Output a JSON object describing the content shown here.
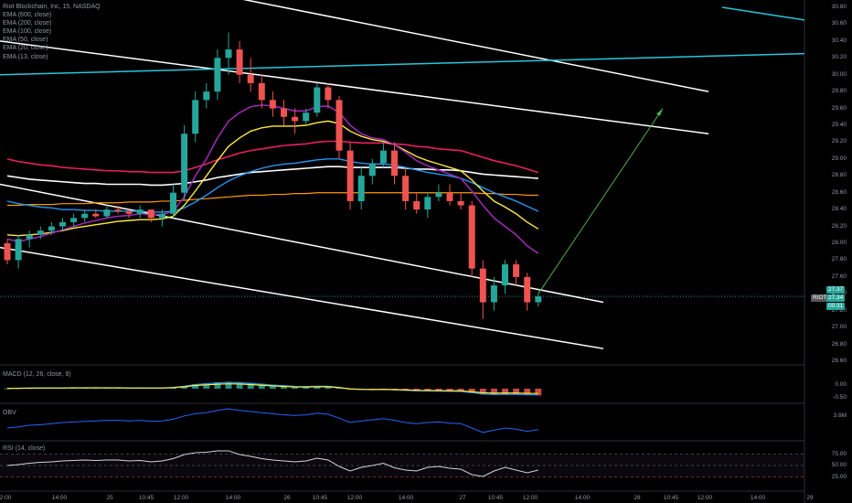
{
  "symbol_line": "Riot Blockchain, Inc, 15, NASDAQ",
  "indicators": [
    "EMA (600, close)",
    "EMA (200, close)",
    "EMA (100, close)",
    "EMA (50, close)",
    "EMA (20, close)",
    "EMA (13, close)"
  ],
  "panes": {
    "macd": "MACD (12, 26, close, 9)",
    "obv": "OBV",
    "rsi": "RSI (14, close)"
  },
  "price_axis": [
    "30.80",
    "30.60",
    "30.40",
    "30.20",
    "30.00",
    "29.80",
    "29.60",
    "29.40",
    "29.20",
    "29.00",
    "28.80",
    "28.60",
    "28.40",
    "28.20",
    "28.00",
    "27.80",
    "27.60",
    "27.40",
    "27.20",
    "27.00",
    "26.80",
    "26.60"
  ],
  "macd_axis": [
    "0.00",
    "-0.50"
  ],
  "obv_axis": [
    "3.8M"
  ],
  "rsi_axis": [
    "75.00",
    "50.00",
    "25.00"
  ],
  "time_axis": [
    "2:00",
    "14:00",
    "25",
    "10:45",
    "12:00",
    "14:00",
    "26",
    "10:45",
    "12:00",
    "14:00",
    "27",
    "10:45",
    "12:00",
    "14:00",
    "28",
    "10:45",
    "12:00",
    "14:00",
    "29"
  ],
  "price_badges": {
    "ticker": "RIOT",
    "last": "27.37",
    "current": "27.34",
    "countdown": "00:31"
  },
  "colors": {
    "up": "#26a69a",
    "down": "#ef5350",
    "ema600": "#26c6da",
    "ema200": "#ffffff",
    "ema100": "#e91e63",
    "ema50": "#2196f3",
    "ema20": "#ffeb3b",
    "ema13": "#9c27b0",
    "ema_long": "#ff9800",
    "arrow": "#4caf50"
  },
  "chart_data": {
    "type": "candlestick",
    "ylim": [
      26.6,
      30.8
    ],
    "candles": [
      [
        28.0,
        28.05,
        27.75,
        27.8
      ],
      [
        27.8,
        28.1,
        27.7,
        28.05
      ],
      [
        28.05,
        28.15,
        27.95,
        28.1
      ],
      [
        28.1,
        28.2,
        28.05,
        28.15
      ],
      [
        28.15,
        28.25,
        28.1,
        28.2
      ],
      [
        28.2,
        28.3,
        28.15,
        28.25
      ],
      [
        28.25,
        28.35,
        28.2,
        28.3
      ],
      [
        28.3,
        28.4,
        28.25,
        28.35
      ],
      [
        28.35,
        28.4,
        28.3,
        28.32
      ],
      [
        28.32,
        28.45,
        28.3,
        28.4
      ],
      [
        28.4,
        28.45,
        28.35,
        28.38
      ],
      [
        28.38,
        28.4,
        28.3,
        28.35
      ],
      [
        28.35,
        28.45,
        28.3,
        28.4
      ],
      [
        28.4,
        28.4,
        28.25,
        28.3
      ],
      [
        28.3,
        28.4,
        28.2,
        28.35
      ],
      [
        28.35,
        28.7,
        28.3,
        28.6
      ],
      [
        28.6,
        29.4,
        28.5,
        29.3
      ],
      [
        29.3,
        29.8,
        29.2,
        29.7
      ],
      [
        29.7,
        29.9,
        29.6,
        29.8
      ],
      [
        29.8,
        30.3,
        29.7,
        30.2
      ],
      [
        30.2,
        30.5,
        30.0,
        30.3
      ],
      [
        30.3,
        30.4,
        29.9,
        30.0
      ],
      [
        30.0,
        30.2,
        29.8,
        29.9
      ],
      [
        29.9,
        30.0,
        29.6,
        29.7
      ],
      [
        29.7,
        29.8,
        29.5,
        29.6
      ],
      [
        29.6,
        29.7,
        29.4,
        29.5
      ],
      [
        29.5,
        29.6,
        29.3,
        29.45
      ],
      [
        29.45,
        29.6,
        29.4,
        29.55
      ],
      [
        29.55,
        29.9,
        29.5,
        29.85
      ],
      [
        29.85,
        29.9,
        29.6,
        29.7
      ],
      [
        29.7,
        29.75,
        29.0,
        29.1
      ],
      [
        29.1,
        29.2,
        28.4,
        28.5
      ],
      [
        28.5,
        28.9,
        28.4,
        28.8
      ],
      [
        28.8,
        29.0,
        28.7,
        28.95
      ],
      [
        28.95,
        29.2,
        28.9,
        29.1
      ],
      [
        29.1,
        29.2,
        28.7,
        28.8
      ],
      [
        28.8,
        28.9,
        28.4,
        28.5
      ],
      [
        28.5,
        28.6,
        28.35,
        28.4
      ],
      [
        28.4,
        28.6,
        28.3,
        28.55
      ],
      [
        28.55,
        28.7,
        28.5,
        28.6
      ],
      [
        28.6,
        28.7,
        28.45,
        28.5
      ],
      [
        28.5,
        28.6,
        28.4,
        28.45
      ],
      [
        28.45,
        28.5,
        27.6,
        27.7
      ],
      [
        27.7,
        27.8,
        27.1,
        27.3
      ],
      [
        27.3,
        27.6,
        27.2,
        27.5
      ],
      [
        27.5,
        27.8,
        27.4,
        27.75
      ],
      [
        27.75,
        27.8,
        27.5,
        27.6
      ],
      [
        27.6,
        27.65,
        27.2,
        27.3
      ],
      [
        27.3,
        27.4,
        27.25,
        27.37
      ]
    ],
    "ema13": [
      28.05,
      28.02,
      28.05,
      28.08,
      28.12,
      28.16,
      28.2,
      28.24,
      28.27,
      28.3,
      28.32,
      28.33,
      28.35,
      28.34,
      28.34,
      28.38,
      28.55,
      28.8,
      29.0,
      29.25,
      29.45,
      29.55,
      29.62,
      29.64,
      29.63,
      29.6,
      29.57,
      29.57,
      29.62,
      29.63,
      29.55,
      29.4,
      29.3,
      29.25,
      29.23,
      29.17,
      29.08,
      28.98,
      28.92,
      28.87,
      28.82,
      28.77,
      28.62,
      28.45,
      28.3,
      28.2,
      28.1,
      27.97,
      27.88
    ],
    "ema20": [
      28.1,
      28.09,
      28.1,
      28.11,
      28.13,
      28.15,
      28.18,
      28.2,
      28.22,
      28.24,
      28.26,
      28.27,
      28.28,
      28.28,
      28.29,
      28.32,
      28.45,
      28.62,
      28.8,
      28.98,
      29.15,
      29.25,
      29.33,
      29.37,
      29.39,
      29.39,
      29.39,
      29.4,
      29.43,
      29.45,
      29.42,
      29.33,
      29.27,
      29.23,
      29.21,
      29.17,
      29.1,
      29.03,
      28.98,
      28.94,
      28.9,
      28.86,
      28.75,
      28.62,
      28.5,
      28.43,
      28.35,
      28.25,
      28.17
    ],
    "ema50": [
      28.5,
      28.47,
      28.45,
      28.43,
      28.42,
      28.4,
      28.4,
      28.39,
      28.39,
      28.38,
      28.38,
      28.38,
      28.38,
      28.37,
      28.37,
      28.38,
      28.42,
      28.49,
      28.57,
      28.66,
      28.74,
      28.8,
      28.85,
      28.89,
      28.92,
      28.94,
      28.95,
      28.97,
      28.99,
      29.0,
      29.0,
      28.97,
      28.95,
      28.94,
      28.94,
      28.93,
      28.9,
      28.87,
      28.84,
      28.82,
      28.8,
      28.77,
      28.72,
      28.66,
      28.6,
      28.55,
      28.5,
      28.44,
      28.38
    ],
    "ema100": [
      29.0,
      28.97,
      28.95,
      28.93,
      28.92,
      28.9,
      28.89,
      28.88,
      28.87,
      28.86,
      28.86,
      28.85,
      28.85,
      28.84,
      28.84,
      28.84,
      28.86,
      28.9,
      28.94,
      28.99,
      29.03,
      29.07,
      29.1,
      29.12,
      29.14,
      29.16,
      29.17,
      29.18,
      29.2,
      29.21,
      29.21,
      29.2,
      29.19,
      29.19,
      29.19,
      29.18,
      29.17,
      29.15,
      29.14,
      29.12,
      29.11,
      29.1,
      29.06,
      29.02,
      28.98,
      28.95,
      28.92,
      28.88,
      28.84
    ],
    "ema200": [
      28.8,
      28.78,
      28.76,
      28.75,
      28.74,
      28.73,
      28.72,
      28.71,
      28.71,
      28.7,
      28.7,
      28.7,
      28.7,
      28.69,
      28.69,
      28.7,
      28.71,
      28.73,
      28.75,
      28.78,
      28.8,
      28.82,
      28.84,
      28.85,
      28.86,
      28.87,
      28.88,
      28.89,
      28.9,
      28.91,
      28.91,
      28.9,
      28.9,
      28.9,
      28.9,
      28.9,
      28.89,
      28.88,
      28.88,
      28.87,
      28.87,
      28.86,
      28.84,
      28.82,
      28.81,
      28.8,
      28.79,
      28.78,
      28.77
    ],
    "ema600": [
      28.45,
      28.45,
      28.46,
      28.46,
      28.46,
      28.47,
      28.47,
      28.47,
      28.48,
      28.48,
      28.48,
      28.49,
      28.49,
      28.49,
      28.5,
      28.5,
      28.51,
      28.52,
      28.53,
      28.54,
      28.55,
      28.56,
      28.57,
      28.57,
      28.58,
      28.58,
      28.59,
      28.59,
      28.6,
      28.6,
      28.6,
      28.6,
      28.6,
      28.6,
      28.6,
      28.6,
      28.6,
      28.6,
      28.6,
      28.6,
      28.6,
      28.6,
      28.6,
      28.59,
      28.59,
      28.58,
      28.58,
      28.57,
      28.57
    ],
    "channel_upper": [
      [
        28.75,
        28.85
      ],
      [
        26.95,
        27.37
      ]
    ],
    "channel_lower": [
      [
        27.9,
        28.0
      ],
      [
        26.75,
        26.6
      ]
    ],
    "rsi": [
      50,
      52,
      55,
      57,
      58,
      60,
      61,
      62,
      61,
      62,
      62,
      60,
      61,
      58,
      60,
      65,
      74,
      78,
      79,
      82,
      82,
      74,
      70,
      65,
      62,
      60,
      58,
      60,
      66,
      62,
      48,
      38,
      46,
      50,
      55,
      45,
      40,
      38,
      46,
      48,
      44,
      42,
      30,
      26,
      38,
      46,
      40,
      34,
      40
    ],
    "macd": [
      0.02,
      0.03,
      0.04,
      0.05,
      0.05,
      0.05,
      0.06,
      0.06,
      0.06,
      0.06,
      0.06,
      0.05,
      0.05,
      0.05,
      0.05,
      0.08,
      0.15,
      0.25,
      0.3,
      0.35,
      0.38,
      0.36,
      0.32,
      0.27,
      0.22,
      0.18,
      0.14,
      0.13,
      0.15,
      0.15,
      0.08,
      -0.02,
      -0.05,
      -0.06,
      -0.05,
      -0.07,
      -0.1,
      -0.13,
      -0.14,
      -0.15,
      -0.16,
      -0.17,
      -0.24,
      -0.32,
      -0.35,
      -0.34,
      -0.34,
      -0.36,
      -0.37
    ],
    "obv": [
      3.6,
      3.62,
      3.65,
      3.66,
      3.68,
      3.7,
      3.71,
      3.72,
      3.73,
      3.74,
      3.74,
      3.73,
      3.74,
      3.72,
      3.73,
      3.76,
      3.82,
      3.86,
      3.88,
      3.92,
      3.95,
      3.92,
      3.9,
      3.88,
      3.86,
      3.84,
      3.83,
      3.84,
      3.87,
      3.85,
      3.78,
      3.7,
      3.73,
      3.75,
      3.77,
      3.74,
      3.7,
      3.68,
      3.7,
      3.71,
      3.69,
      3.68,
      3.6,
      3.52,
      3.56,
      3.6,
      3.58,
      3.54,
      3.57
    ]
  }
}
